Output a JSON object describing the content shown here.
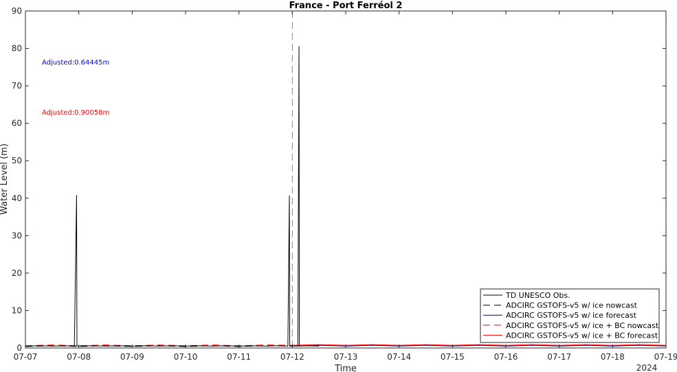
{
  "chart_data": {
    "type": "line",
    "title": "France - Port Ferréol 2",
    "xlabel": "Time",
    "ylabel": "Water Level (m)",
    "year_label": "2024",
    "xlim": [
      "2024-07-07",
      "2024-07-19"
    ],
    "ylim": [
      0,
      90
    ],
    "x_ticks": [
      "07-07",
      "07-08",
      "07-09",
      "07-10",
      "07-11",
      "07-12",
      "07-13",
      "07-14",
      "07-15",
      "07-16",
      "07-17",
      "07-18",
      "07-19"
    ],
    "y_ticks": [
      0,
      10,
      20,
      30,
      40,
      50,
      60,
      70,
      80,
      90
    ],
    "grid": false,
    "legend_position": "bottom-right",
    "nowcast_forecast_divider": "2024-07-12T00:00",
    "annotations": [
      {
        "text": "Adjusted:0.64445m",
        "color": "#0000ff"
      },
      {
        "text": "Adjusted:0.90058m",
        "color": "#ff0000"
      }
    ],
    "series": [
      {
        "name": "TD UNESCO Obs.",
        "color": "#000000",
        "dash": "solid",
        "points": [
          [
            "2024-07-07T00:00",
            0.5
          ],
          [
            "2024-07-07T06:00",
            0.6
          ],
          [
            "2024-07-07T12:00",
            0.5
          ],
          [
            "2024-07-07T18:00",
            0.6
          ],
          [
            "2024-07-07T22:00",
            0.5
          ],
          [
            "2024-07-07T23:00",
            40.8
          ],
          [
            "2024-07-07T23:10",
            0.5
          ],
          [
            "2024-07-08T06:00",
            0.6
          ],
          [
            "2024-07-08T12:00",
            0.5
          ],
          [
            "2024-07-08T18:00",
            0.6
          ],
          [
            "2024-07-09T00:00",
            0.5
          ],
          [
            "2024-07-09T06:00",
            0.6
          ],
          [
            "2024-07-09T12:00",
            0.5
          ],
          [
            "2024-07-09T18:00",
            0.6
          ],
          [
            "2024-07-10T00:00",
            0.5
          ],
          [
            "2024-07-10T06:00",
            0.6
          ],
          [
            "2024-07-10T12:00",
            0.5
          ],
          [
            "2024-07-10T18:00",
            0.6
          ],
          [
            "2024-07-11T00:00",
            0.5
          ],
          [
            "2024-07-11T06:00",
            0.6
          ],
          [
            "2024-07-11T12:00",
            0.5
          ],
          [
            "2024-07-11T18:00",
            0.6
          ],
          [
            "2024-07-11T22:00",
            0.5
          ],
          [
            "2024-07-11T22:40",
            40.7
          ],
          [
            "2024-07-11T22:50",
            0.5
          ],
          [
            "2024-07-12T00:00",
            0.6
          ],
          [
            "2024-07-12T02:30",
            0.5
          ],
          [
            "2024-07-12T03:00",
            80.6
          ],
          [
            "2024-07-12T03:10",
            0.5
          ],
          [
            "2024-07-12T06:00",
            0.6
          ],
          [
            "2024-07-12T12:00",
            0.5
          ]
        ]
      },
      {
        "name": "ADCIRC GSTOFS-v5 w/ ice nowcast",
        "color": "#000000",
        "dash": "dashed",
        "points": [
          [
            "2024-07-07T00:00",
            0.4
          ],
          [
            "2024-07-07T12:00",
            0.6
          ],
          [
            "2024-07-08T00:00",
            0.4
          ],
          [
            "2024-07-08T12:00",
            0.6
          ],
          [
            "2024-07-09T00:00",
            0.4
          ],
          [
            "2024-07-09T12:00",
            0.6
          ],
          [
            "2024-07-10T00:00",
            0.4
          ],
          [
            "2024-07-10T12:00",
            0.6
          ],
          [
            "2024-07-11T00:00",
            0.4
          ],
          [
            "2024-07-11T12:00",
            0.6
          ],
          [
            "2024-07-12T00:00",
            0.5
          ]
        ]
      },
      {
        "name": "ADCIRC GSTOFS-v5 w/ ice forecast",
        "color": "#000080",
        "dash": "solid",
        "points": [
          [
            "2024-07-12T00:00",
            0.5
          ],
          [
            "2024-07-12T12:00",
            0.7
          ],
          [
            "2024-07-13T00:00",
            0.5
          ],
          [
            "2024-07-13T12:00",
            0.7
          ],
          [
            "2024-07-14T00:00",
            0.5
          ],
          [
            "2024-07-14T12:00",
            0.7
          ],
          [
            "2024-07-15T00:00",
            0.5
          ],
          [
            "2024-07-15T12:00",
            0.7
          ],
          [
            "2024-07-16T00:00",
            0.5
          ],
          [
            "2024-07-16T12:00",
            0.7
          ],
          [
            "2024-07-17T00:00",
            0.5
          ],
          [
            "2024-07-17T12:00",
            0.7
          ],
          [
            "2024-07-18T00:00",
            0.5
          ],
          [
            "2024-07-18T12:00",
            0.7
          ],
          [
            "2024-07-19T00:00",
            0.5
          ]
        ]
      },
      {
        "name": "ADCIRC GSTOFS-v5 w/ ice + BC nowcast",
        "color": "#ff0000",
        "dash": "dashed",
        "points": [
          [
            "2024-07-07T00:00",
            0.6
          ],
          [
            "2024-07-07T12:00",
            0.8
          ],
          [
            "2024-07-08T00:00",
            0.6
          ],
          [
            "2024-07-08T12:00",
            0.8
          ],
          [
            "2024-07-09T00:00",
            0.6
          ],
          [
            "2024-07-09T12:00",
            0.8
          ],
          [
            "2024-07-10T00:00",
            0.6
          ],
          [
            "2024-07-10T12:00",
            0.8
          ],
          [
            "2024-07-11T00:00",
            0.6
          ],
          [
            "2024-07-11T12:00",
            0.8
          ],
          [
            "2024-07-12T00:00",
            0.7
          ]
        ]
      },
      {
        "name": "ADCIRC GSTOFS-v5 w/ ice + BC forecast",
        "color": "#ff0000",
        "dash": "solid",
        "points": [
          [
            "2024-07-12T00:00",
            0.7
          ],
          [
            "2024-07-12T12:00",
            0.9
          ],
          [
            "2024-07-13T00:00",
            0.7
          ],
          [
            "2024-07-13T12:00",
            0.9
          ],
          [
            "2024-07-14T00:00",
            0.7
          ],
          [
            "2024-07-14T12:00",
            0.9
          ],
          [
            "2024-07-15T00:00",
            0.7
          ],
          [
            "2024-07-15T12:00",
            0.9
          ],
          [
            "2024-07-16T00:00",
            0.7
          ],
          [
            "2024-07-16T12:00",
            0.9
          ],
          [
            "2024-07-17T00:00",
            0.7
          ],
          [
            "2024-07-17T12:00",
            0.9
          ],
          [
            "2024-07-18T00:00",
            0.7
          ],
          [
            "2024-07-18T12:00",
            0.9
          ],
          [
            "2024-07-19T00:00",
            0.7
          ]
        ]
      }
    ]
  }
}
